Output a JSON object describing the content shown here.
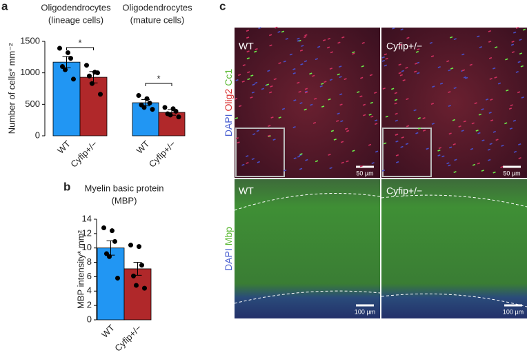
{
  "panel_labels": [
    "a",
    "b",
    "c"
  ],
  "chart_data": [
    {
      "type": "bar",
      "title": "Oligodendrocytes",
      "subtitle": "(lineage cells)",
      "ylabel": "Number of cells* mm⁻²",
      "categories": [
        "WT",
        "Cyfip+/−"
      ],
      "colors": [
        "#2196f3",
        "#b0282a"
      ],
      "values": [
        1170,
        930
      ],
      "errors": [
        90,
        90
      ],
      "points": [
        [
          1390,
          1320,
          1230,
          1100,
          1050,
          900
        ],
        [
          1120,
          1010,
          1000,
          950,
          830,
          660
        ]
      ],
      "ylim": [
        0,
        1500
      ],
      "yticks": [
        0,
        500,
        1000,
        1500
      ],
      "significance": "*"
    },
    {
      "type": "bar",
      "title": "Oligodendrocytes",
      "subtitle": "(mature cells)",
      "categories": [
        "WT",
        "Cyfip+/−"
      ],
      "colors": [
        "#2196f3",
        "#b0282a"
      ],
      "values": [
        525,
        372
      ],
      "errors": [
        50,
        45
      ],
      "points": [
        [
          640,
          590,
          520,
          490,
          450,
          420
        ],
        [
          450,
          430,
          390,
          350,
          330,
          300
        ]
      ],
      "ylim": [
        0,
        1500
      ],
      "significance": "*"
    },
    {
      "type": "bar",
      "title": "Myelin basic protein",
      "subtitle": "(MBP)",
      "ylabel": "MBP intensity* mm²",
      "categories": [
        "WT",
        "Cyfip+/−"
      ],
      "colors": [
        "#2196f3",
        "#b0282a"
      ],
      "values": [
        10.0,
        7.1
      ],
      "errors": [
        1.0,
        0.9
      ],
      "points": [
        [
          12.8,
          12.4,
          10.9,
          9.2,
          8.8,
          5.8
        ],
        [
          10.4,
          10.2,
          7.6,
          6.1,
          4.8,
          4.4
        ]
      ],
      "ylim": [
        0,
        14
      ],
      "yticks": [
        0,
        2,
        4,
        6,
        8,
        10,
        12,
        14
      ]
    }
  ],
  "images": {
    "rows": [
      {
        "channels": [
          "DAPI",
          "Olig2",
          "Cc1"
        ],
        "panels": [
          {
            "label": "WT",
            "scale": "50 µm"
          },
          {
            "label": "Cyfip+/−",
            "scale": "50 µm"
          }
        ]
      },
      {
        "channels": [
          "DAPI",
          "Mbp"
        ],
        "panels": [
          {
            "label": "WT",
            "scale": "100 µm"
          },
          {
            "label": "Cyfip+/−",
            "scale": "100 µm"
          }
        ]
      }
    ]
  }
}
